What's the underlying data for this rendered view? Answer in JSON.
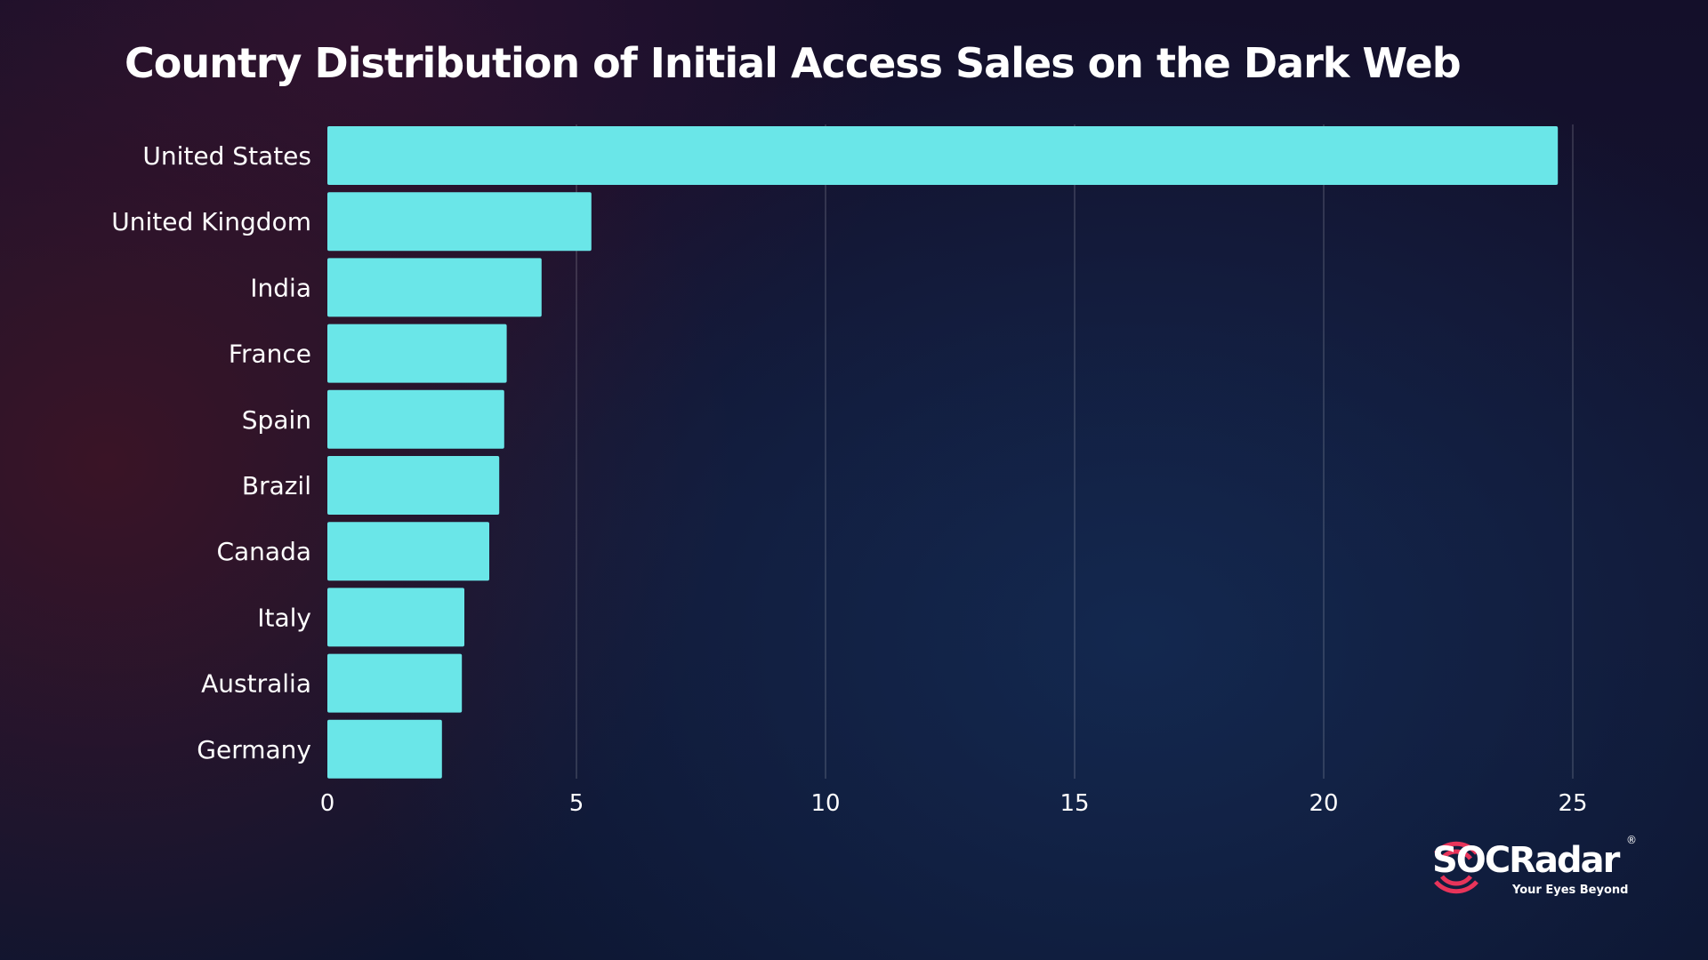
{
  "chart_data": {
    "type": "bar",
    "orientation": "horizontal",
    "title": "Country Distribution of Initial Access Sales on the Dark Web",
    "categories": [
      "United States",
      "United Kingdom",
      "India",
      "France",
      "Spain",
      "Brazil",
      "Canada",
      "Italy",
      "Australia",
      "Germany"
    ],
    "values": [
      24.7,
      5.3,
      4.3,
      3.6,
      3.55,
      3.45,
      3.25,
      2.75,
      2.7,
      2.3
    ],
    "xticks": [
      "0",
      "5",
      "10",
      "15",
      "20",
      "25"
    ],
    "xlim": [
      0,
      25
    ],
    "grid": "vertical",
    "colors": {
      "bar": "#6ae6e8",
      "text": "#ffffff"
    }
  },
  "logo": {
    "brand": "SOCRadar",
    "registered": "®",
    "tagline": "Your Eyes Beyond",
    "colors": {
      "mark": "#e8345a"
    }
  }
}
